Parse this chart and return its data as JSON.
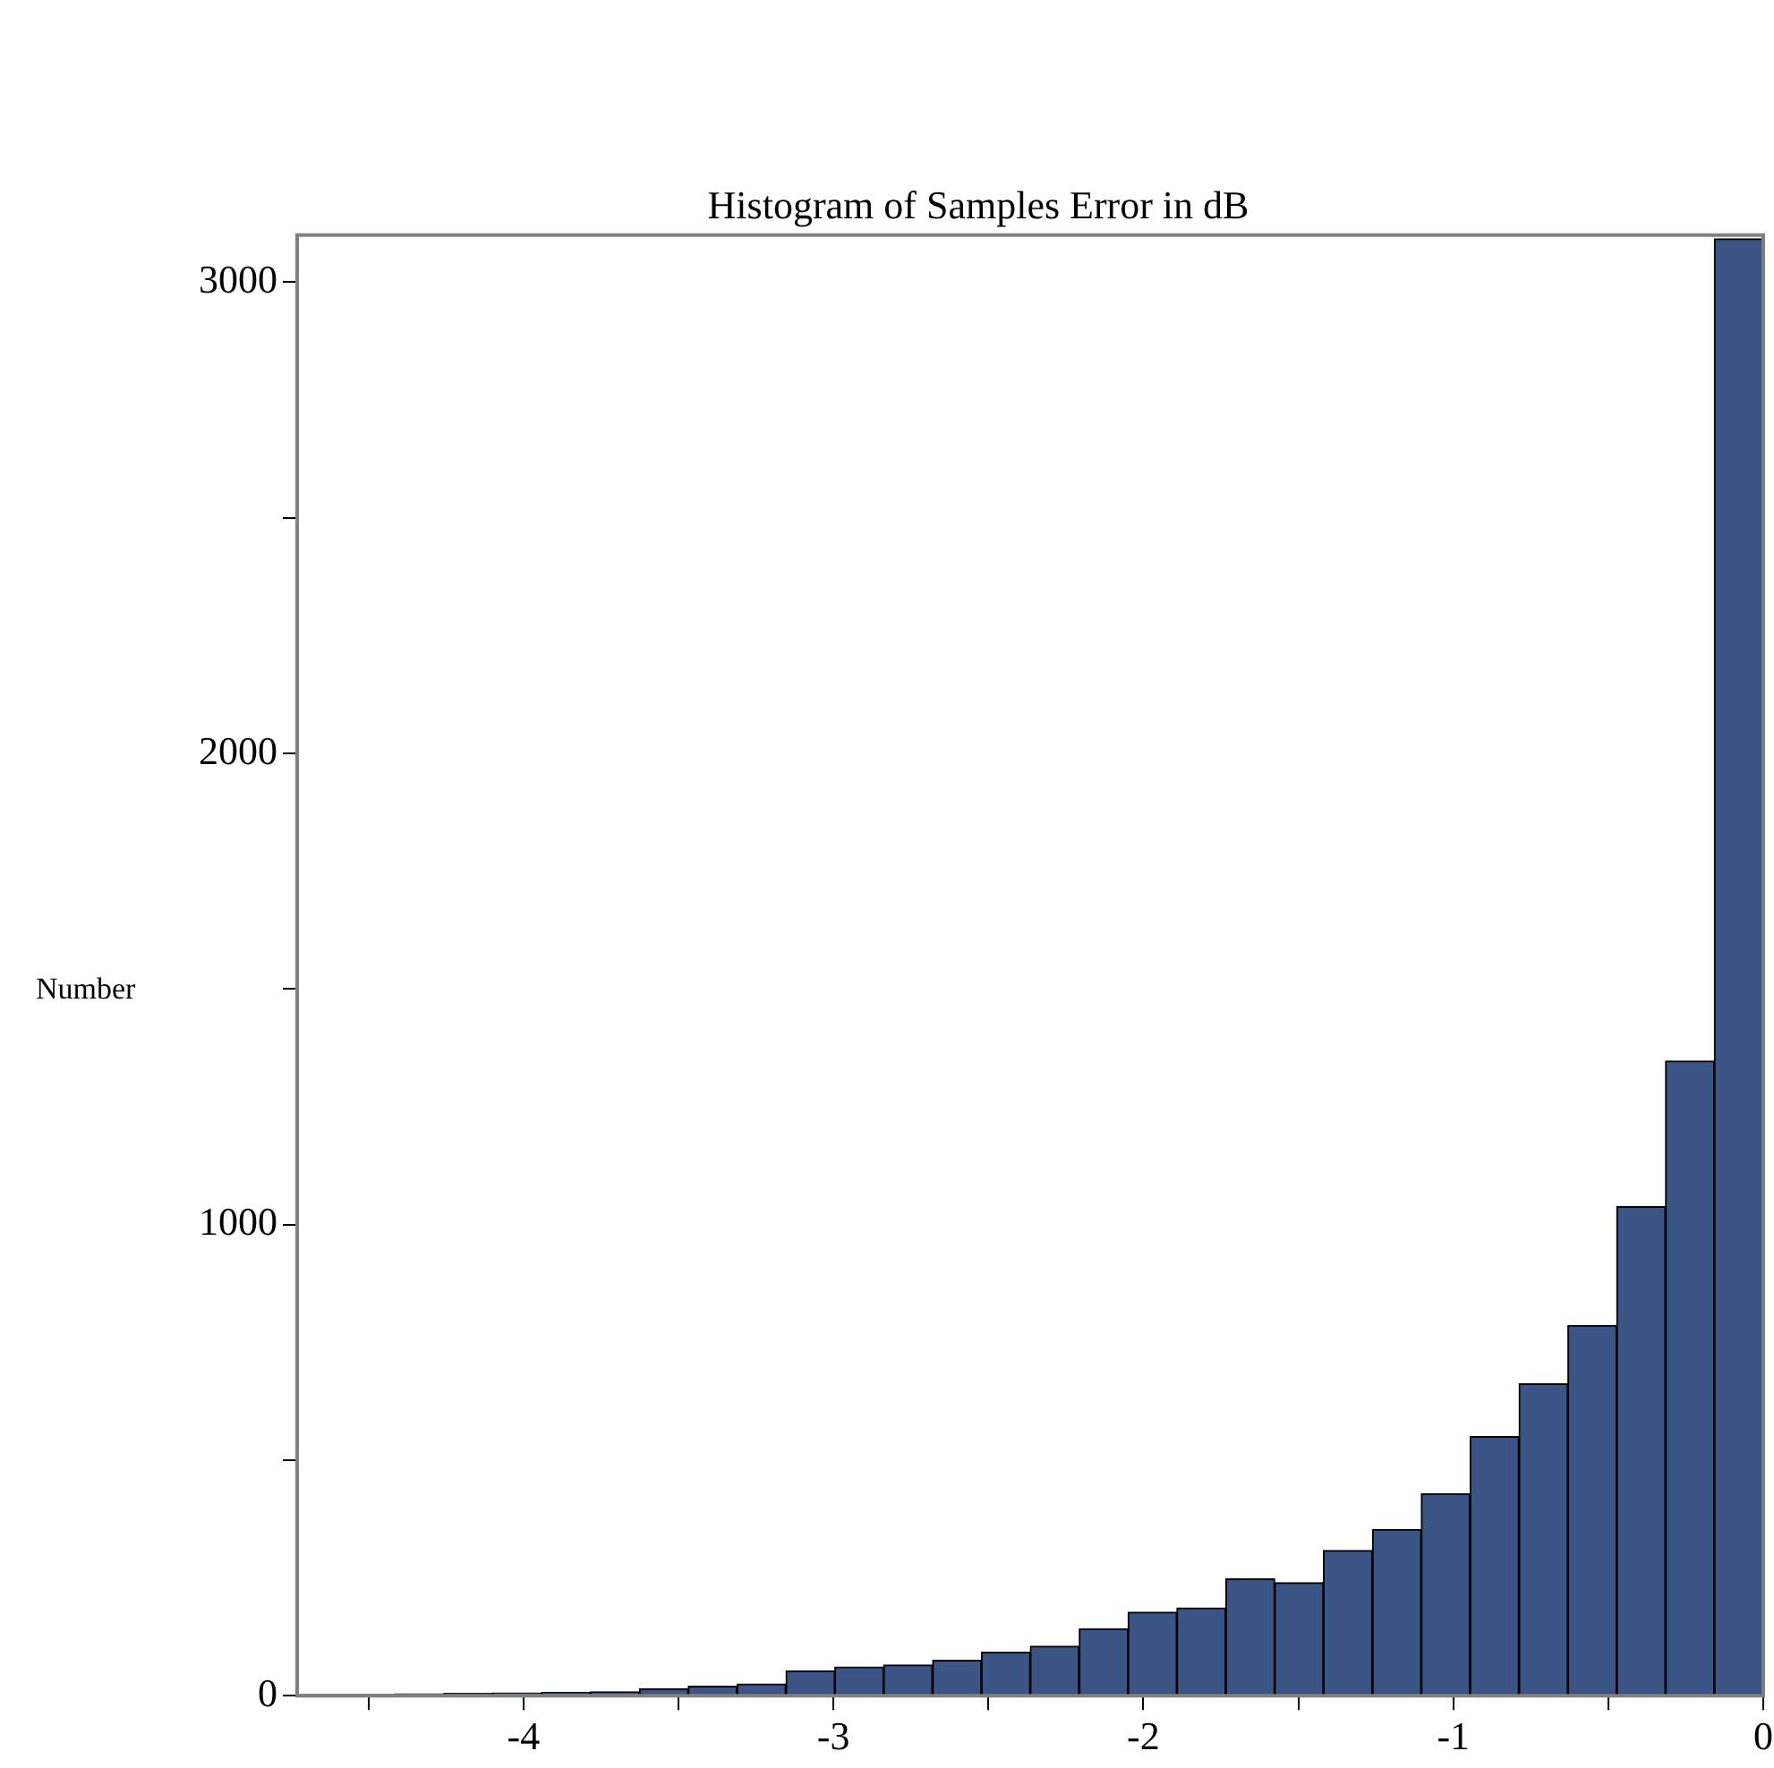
{
  "chart_data": {
    "type": "histogram",
    "title": "Histogram of Samples Error in dB",
    "ylabel": "Number",
    "color": "#3b5486",
    "bins": [
      -4.73,
      -4.572,
      -4.415,
      -4.257,
      -4.099,
      -3.942,
      -3.784,
      -3.626,
      -3.468,
      -3.311,
      -3.153,
      -2.995,
      -2.838,
      -2.68,
      -2.522,
      -2.365,
      -2.207,
      -2.049,
      -1.892,
      -1.734,
      -1.576,
      -1.419,
      -1.261,
      -1.103,
      -0.946,
      -0.788,
      -0.63,
      -0.473,
      -0.315,
      -0.158,
      0
    ],
    "values": [
      null,
      null,
      4,
      5,
      6,
      7,
      8,
      15,
      20,
      25,
      53,
      61,
      65,
      75,
      92,
      105,
      142,
      177,
      186,
      248,
      240,
      308,
      353,
      429,
      550,
      662,
      786,
      1038,
      1347,
      3092
    ],
    "xlim": [
      -4.73,
      0
    ],
    "xticks": [
      {
        "value": -4.5,
        "label": null
      },
      -4,
      {
        "value": -3.5,
        "label": null
      },
      -3,
      {
        "value": -2.5,
        "label": null
      },
      -2,
      {
        "value": -1.5,
        "label": null
      },
      -1,
      {
        "value": -0.5,
        "label": null
      },
      0
    ],
    "ylim": [
      0,
      3100
    ],
    "yticks": [
      0,
      {
        "value": 500,
        "label": null
      },
      1000,
      {
        "value": 1500,
        "label": null
      },
      2000,
      {
        "value": 2500,
        "label": null
      },
      3000
    ],
    "grid": false,
    "legend": false
  }
}
